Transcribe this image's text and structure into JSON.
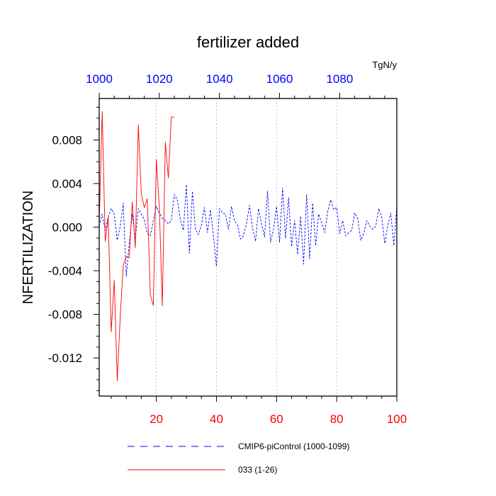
{
  "chart_data": {
    "type": "line",
    "title": "fertilizer added",
    "ylabel": "NFERTILIZATION",
    "units": "TgN/y",
    "xlim": [
      1,
      100
    ],
    "ylim": [
      -0.0155,
      0.0118
    ],
    "bottom_axis": {
      "ticks": [
        20,
        40,
        60,
        80,
        100
      ],
      "tick_labels": [
        "20",
        "40",
        "60",
        "80",
        "100"
      ],
      "color": "#ff0000"
    },
    "top_axis": {
      "ticks": [
        1000,
        1020,
        1040,
        1060,
        1080
      ],
      "tick_labels": [
        "1000",
        "1020",
        "1040",
        "1060",
        "1080"
      ],
      "offset": 999,
      "color": "#0000ff"
    },
    "y_ticks": [
      -0.012,
      -0.008,
      -0.004,
      0.0,
      0.004,
      0.008
    ],
    "y_tick_labels": [
      "-0.012",
      "-0.008",
      "-0.004",
      "0.000",
      "0.004",
      "0.008"
    ],
    "grid": "vertical dotted at bottom-axis major ticks",
    "series": [
      {
        "name": "CMIP6-piControl (1000-1099)",
        "color": "#0000ff",
        "dash": "dashed",
        "x": [
          1,
          2,
          3,
          4,
          5,
          6,
          7,
          8,
          9,
          10,
          11,
          12,
          13,
          14,
          15,
          16,
          17,
          18,
          19,
          20,
          21,
          22,
          23,
          24,
          25,
          26,
          27,
          28,
          29,
          30,
          31,
          32,
          33,
          34,
          35,
          36,
          37,
          38,
          39,
          40,
          41,
          42,
          43,
          44,
          45,
          46,
          47,
          48,
          49,
          50,
          51,
          52,
          53,
          54,
          55,
          56,
          57,
          58,
          59,
          60,
          61,
          62,
          63,
          64,
          65,
          66,
          67,
          68,
          69,
          70,
          71,
          72,
          73,
          74,
          75,
          76,
          77,
          78,
          79,
          80,
          81,
          82,
          83,
          84,
          85,
          86,
          87,
          88,
          89,
          90,
          91,
          92,
          93,
          94,
          95,
          96,
          97,
          98,
          99,
          100
        ],
        "values": [
          0.0001,
          0.0012,
          -0.0003,
          0.0009,
          0.0017,
          0.0012,
          -0.0012,
          0.0001,
          0.0022,
          -0.0045,
          -0.0015,
          0.0012,
          -0.0011,
          0.0017,
          0.0012,
          0.0007,
          -0.0006,
          -0.0008,
          0.0006,
          0.0019,
          0.0013,
          0.0008,
          0.0006,
          0.0003,
          0.0006,
          0.003,
          0.0025,
          0.0007,
          -0.0003,
          0.0039,
          -0.0024,
          0.0033,
          -0.0002,
          -0.0007,
          0.0002,
          0.0018,
          -0.0005,
          0.0016,
          -0.0008,
          -0.0036,
          0.0017,
          0.0013,
          0.0012,
          -0.0002,
          0.0019,
          0.0006,
          0.0002,
          -0.0011,
          -0.0008,
          0.0003,
          0.002,
          -0.0001,
          -0.0013,
          0.0017,
          0.0003,
          -0.0009,
          0.0033,
          -0.0014,
          -0.0002,
          0.0019,
          -0.0014,
          0.0036,
          -0.001,
          0.0027,
          -0.0018,
          0.0006,
          -0.0025,
          0.001,
          -0.0034,
          0.003,
          -0.0029,
          0.0022,
          -0.0017,
          0.0012,
          0.0004,
          -0.0005,
          0.0014,
          0.0025,
          0.0016,
          0.0018,
          -0.0006,
          0.0006,
          -0.0008,
          -0.0005,
          -0.0003,
          0.0013,
          0.0008,
          -0.0012,
          -0.0006,
          0.0006,
          0.0001,
          -0.0002,
          0.0001,
          0.0017,
          0.0009,
          -0.0015,
          0.0002,
          0.0013,
          -0.0017,
          0.0019
        ]
      },
      {
        "name": "033 (1-26)",
        "color": "#ff0000",
        "dash": "solid",
        "x": [
          1,
          2,
          3,
          4,
          5,
          6,
          7,
          8,
          9,
          10,
          11,
          12,
          13,
          14,
          15,
          16,
          17,
          18,
          19,
          20,
          21,
          22,
          23,
          24,
          25,
          26
        ],
        "values": [
          0.0002,
          0.0106,
          -0.0013,
          0.0009,
          -0.0096,
          -0.0049,
          -0.0141,
          -0.0082,
          -0.0035,
          -0.0027,
          -0.0028,
          0.0023,
          -0.0019,
          0.0094,
          0.0031,
          0.0018,
          0.0026,
          -0.0062,
          -0.0072,
          0.0062,
          0.0018,
          -0.0072,
          0.0078,
          0.0045,
          0.0101,
          0.0101
        ]
      }
    ]
  }
}
